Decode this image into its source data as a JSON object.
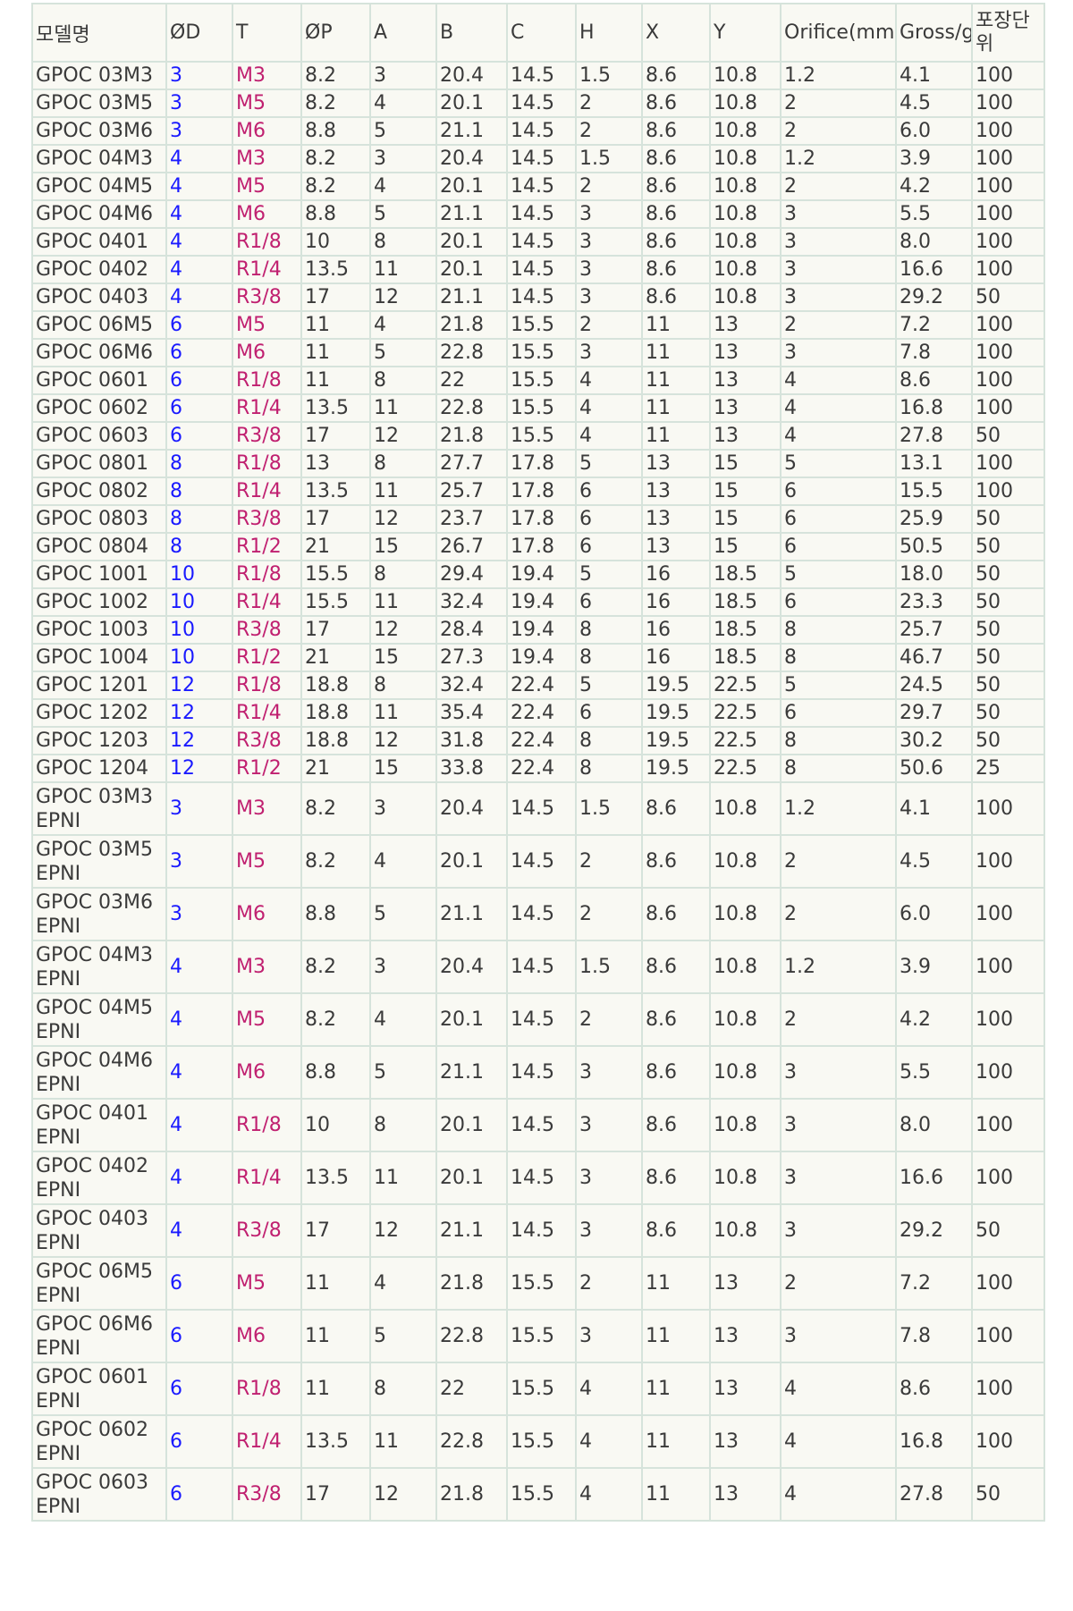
{
  "table": {
    "headers": [
      "모델명",
      "ØD",
      "T",
      "ØP",
      "A",
      "B",
      "C",
      "H",
      "X",
      "Y",
      "Orifice(mm)",
      "Gross/g",
      "포장단위"
    ],
    "rows": [
      [
        "GPOC 03M3",
        "3",
        "M3",
        "8.2",
        "3",
        "20.4",
        "14.5",
        "1.5",
        "8.6",
        "10.8",
        "1.2",
        "4.1",
        "100"
      ],
      [
        "GPOC 03M5",
        "3",
        "M5",
        "8.2",
        "4",
        "20.1",
        "14.5",
        "2",
        "8.6",
        "10.8",
        "2",
        "4.5",
        "100"
      ],
      [
        "GPOC 03M6",
        "3",
        "M6",
        "8.8",
        "5",
        "21.1",
        "14.5",
        "2",
        "8.6",
        "10.8",
        "2",
        "6.0",
        "100"
      ],
      [
        "GPOC 04M3",
        "4",
        "M3",
        "8.2",
        "3",
        "20.4",
        "14.5",
        "1.5",
        "8.6",
        "10.8",
        "1.2",
        "3.9",
        "100"
      ],
      [
        "GPOC 04M5",
        "4",
        "M5",
        "8.2",
        "4",
        "20.1",
        "14.5",
        "2",
        "8.6",
        "10.8",
        "2",
        "4.2",
        "100"
      ],
      [
        "GPOC 04M6",
        "4",
        "M6",
        "8.8",
        "5",
        "21.1",
        "14.5",
        "3",
        "8.6",
        "10.8",
        "3",
        "5.5",
        "100"
      ],
      [
        "GPOC 0401",
        "4",
        "R1/8",
        "10",
        "8",
        "20.1",
        "14.5",
        "3",
        "8.6",
        "10.8",
        "3",
        "8.0",
        "100"
      ],
      [
        "GPOC 0402",
        "4",
        "R1/4",
        "13.5",
        "11",
        "20.1",
        "14.5",
        "3",
        "8.6",
        "10.8",
        "3",
        "16.6",
        "100"
      ],
      [
        "GPOC 0403",
        "4",
        "R3/8",
        "17",
        "12",
        "21.1",
        "14.5",
        "3",
        "8.6",
        "10.8",
        "3",
        "29.2",
        "50"
      ],
      [
        "GPOC 06M5",
        "6",
        "M5",
        "11",
        "4",
        "21.8",
        "15.5",
        "2",
        "11",
        "13",
        "2",
        "7.2",
        "100"
      ],
      [
        "GPOC 06M6",
        "6",
        "M6",
        "11",
        "5",
        "22.8",
        "15.5",
        "3",
        "11",
        "13",
        "3",
        "7.8",
        "100"
      ],
      [
        "GPOC 0601",
        "6",
        "R1/8",
        "11",
        "8",
        "22",
        "15.5",
        "4",
        "11",
        "13",
        "4",
        "8.6",
        "100"
      ],
      [
        "GPOC 0602",
        "6",
        "R1/4",
        "13.5",
        "11",
        "22.8",
        "15.5",
        "4",
        "11",
        "13",
        "4",
        "16.8",
        "100"
      ],
      [
        "GPOC 0603",
        "6",
        "R3/8",
        "17",
        "12",
        "21.8",
        "15.5",
        "4",
        "11",
        "13",
        "4",
        "27.8",
        "50"
      ],
      [
        "GPOC 0801",
        "8",
        "R1/8",
        "13",
        "8",
        "27.7",
        "17.8",
        "5",
        "13",
        "15",
        "5",
        "13.1",
        "100"
      ],
      [
        "GPOC 0802",
        "8",
        "R1/4",
        "13.5",
        "11",
        "25.7",
        "17.8",
        "6",
        "13",
        "15",
        "6",
        "15.5",
        "100"
      ],
      [
        "GPOC 0803",
        "8",
        "R3/8",
        "17",
        "12",
        "23.7",
        "17.8",
        "6",
        "13",
        "15",
        "6",
        "25.9",
        "50"
      ],
      [
        "GPOC 0804",
        "8",
        "R1/2",
        "21",
        "15",
        "26.7",
        "17.8",
        "6",
        "13",
        "15",
        "6",
        "50.5",
        "50"
      ],
      [
        "GPOC 1001",
        "10",
        "R1/8",
        "15.5",
        "8",
        "29.4",
        "19.4",
        "5",
        "16",
        "18.5",
        "5",
        "18.0",
        "50"
      ],
      [
        "GPOC 1002",
        "10",
        "R1/4",
        "15.5",
        "11",
        "32.4",
        "19.4",
        "6",
        "16",
        "18.5",
        "6",
        "23.3",
        "50"
      ],
      [
        "GPOC 1003",
        "10",
        "R3/8",
        "17",
        "12",
        "28.4",
        "19.4",
        "8",
        "16",
        "18.5",
        "8",
        "25.7",
        "50"
      ],
      [
        "GPOC 1004",
        "10",
        "R1/2",
        "21",
        "15",
        "27.3",
        "19.4",
        "8",
        "16",
        "18.5",
        "8",
        "46.7",
        "50"
      ],
      [
        "GPOC 1201",
        "12",
        "R1/8",
        "18.8",
        "8",
        "32.4",
        "22.4",
        "5",
        "19.5",
        "22.5",
        "5",
        "24.5",
        "50"
      ],
      [
        "GPOC 1202",
        "12",
        "R1/4",
        "18.8",
        "11",
        "35.4",
        "22.4",
        "6",
        "19.5",
        "22.5",
        "6",
        "29.7",
        "50"
      ],
      [
        "GPOC 1203",
        "12",
        "R3/8",
        "18.8",
        "12",
        "31.8",
        "22.4",
        "8",
        "19.5",
        "22.5",
        "8",
        "30.2",
        "50"
      ],
      [
        "GPOC 1204",
        "12",
        "R1/2",
        "21",
        "15",
        "33.8",
        "22.4",
        "8",
        "19.5",
        "22.5",
        "8",
        "50.6",
        "25"
      ],
      [
        "GPOC 03M3 EPNI",
        "3",
        "M3",
        "8.2",
        "3",
        "20.4",
        "14.5",
        "1.5",
        "8.6",
        "10.8",
        "1.2",
        "4.1",
        "100"
      ],
      [
        "GPOC 03M5 EPNI",
        "3",
        "M5",
        "8.2",
        "4",
        "20.1",
        "14.5",
        "2",
        "8.6",
        "10.8",
        "2",
        "4.5",
        "100"
      ],
      [
        "GPOC 03M6 EPNI",
        "3",
        "M6",
        "8.8",
        "5",
        "21.1",
        "14.5",
        "2",
        "8.6",
        "10.8",
        "2",
        "6.0",
        "100"
      ],
      [
        "GPOC 04M3 EPNI",
        "4",
        "M3",
        "8.2",
        "3",
        "20.4",
        "14.5",
        "1.5",
        "8.6",
        "10.8",
        "1.2",
        "3.9",
        "100"
      ],
      [
        "GPOC 04M5 EPNI",
        "4",
        "M5",
        "8.2",
        "4",
        "20.1",
        "14.5",
        "2",
        "8.6",
        "10.8",
        "2",
        "4.2",
        "100"
      ],
      [
        "GPOC 04M6 EPNI",
        "4",
        "M6",
        "8.8",
        "5",
        "21.1",
        "14.5",
        "3",
        "8.6",
        "10.8",
        "3",
        "5.5",
        "100"
      ],
      [
        "GPOC 0401 EPNI",
        "4",
        "R1/8",
        "10",
        "8",
        "20.1",
        "14.5",
        "3",
        "8.6",
        "10.8",
        "3",
        "8.0",
        "100"
      ],
      [
        "GPOC 0402 EPNI",
        "4",
        "R1/4",
        "13.5",
        "11",
        "20.1",
        "14.5",
        "3",
        "8.6",
        "10.8",
        "3",
        "16.6",
        "100"
      ],
      [
        "GPOC 0403 EPNI",
        "4",
        "R3/8",
        "17",
        "12",
        "21.1",
        "14.5",
        "3",
        "8.6",
        "10.8",
        "3",
        "29.2",
        "50"
      ],
      [
        "GPOC 06M5 EPNI",
        "6",
        "M5",
        "11",
        "4",
        "21.8",
        "15.5",
        "2",
        "11",
        "13",
        "2",
        "7.2",
        "100"
      ],
      [
        "GPOC 06M6 EPNI",
        "6",
        "M6",
        "11",
        "5",
        "22.8",
        "15.5",
        "3",
        "11",
        "13",
        "3",
        "7.8",
        "100"
      ],
      [
        "GPOC 0601 EPNI",
        "6",
        "R1/8",
        "11",
        "8",
        "22",
        "15.5",
        "4",
        "11",
        "13",
        "4",
        "8.6",
        "100"
      ],
      [
        "GPOC 0602 EPNI",
        "6",
        "R1/4",
        "13.5",
        "11",
        "22.8",
        "15.5",
        "4",
        "11",
        "13",
        "4",
        "16.8",
        "100"
      ],
      [
        "GPOC 0603 EPNI",
        "6",
        "R3/8",
        "17",
        "12",
        "21.8",
        "15.5",
        "4",
        "11",
        "13",
        "4",
        "27.8",
        "50"
      ]
    ]
  },
  "colors": {
    "od_text": "#1a1aff",
    "thread_text": "#c02070",
    "grid": "#d6e3db",
    "cell_bg": "#f9f9f3",
    "body_text": "#3a3a3a"
  }
}
